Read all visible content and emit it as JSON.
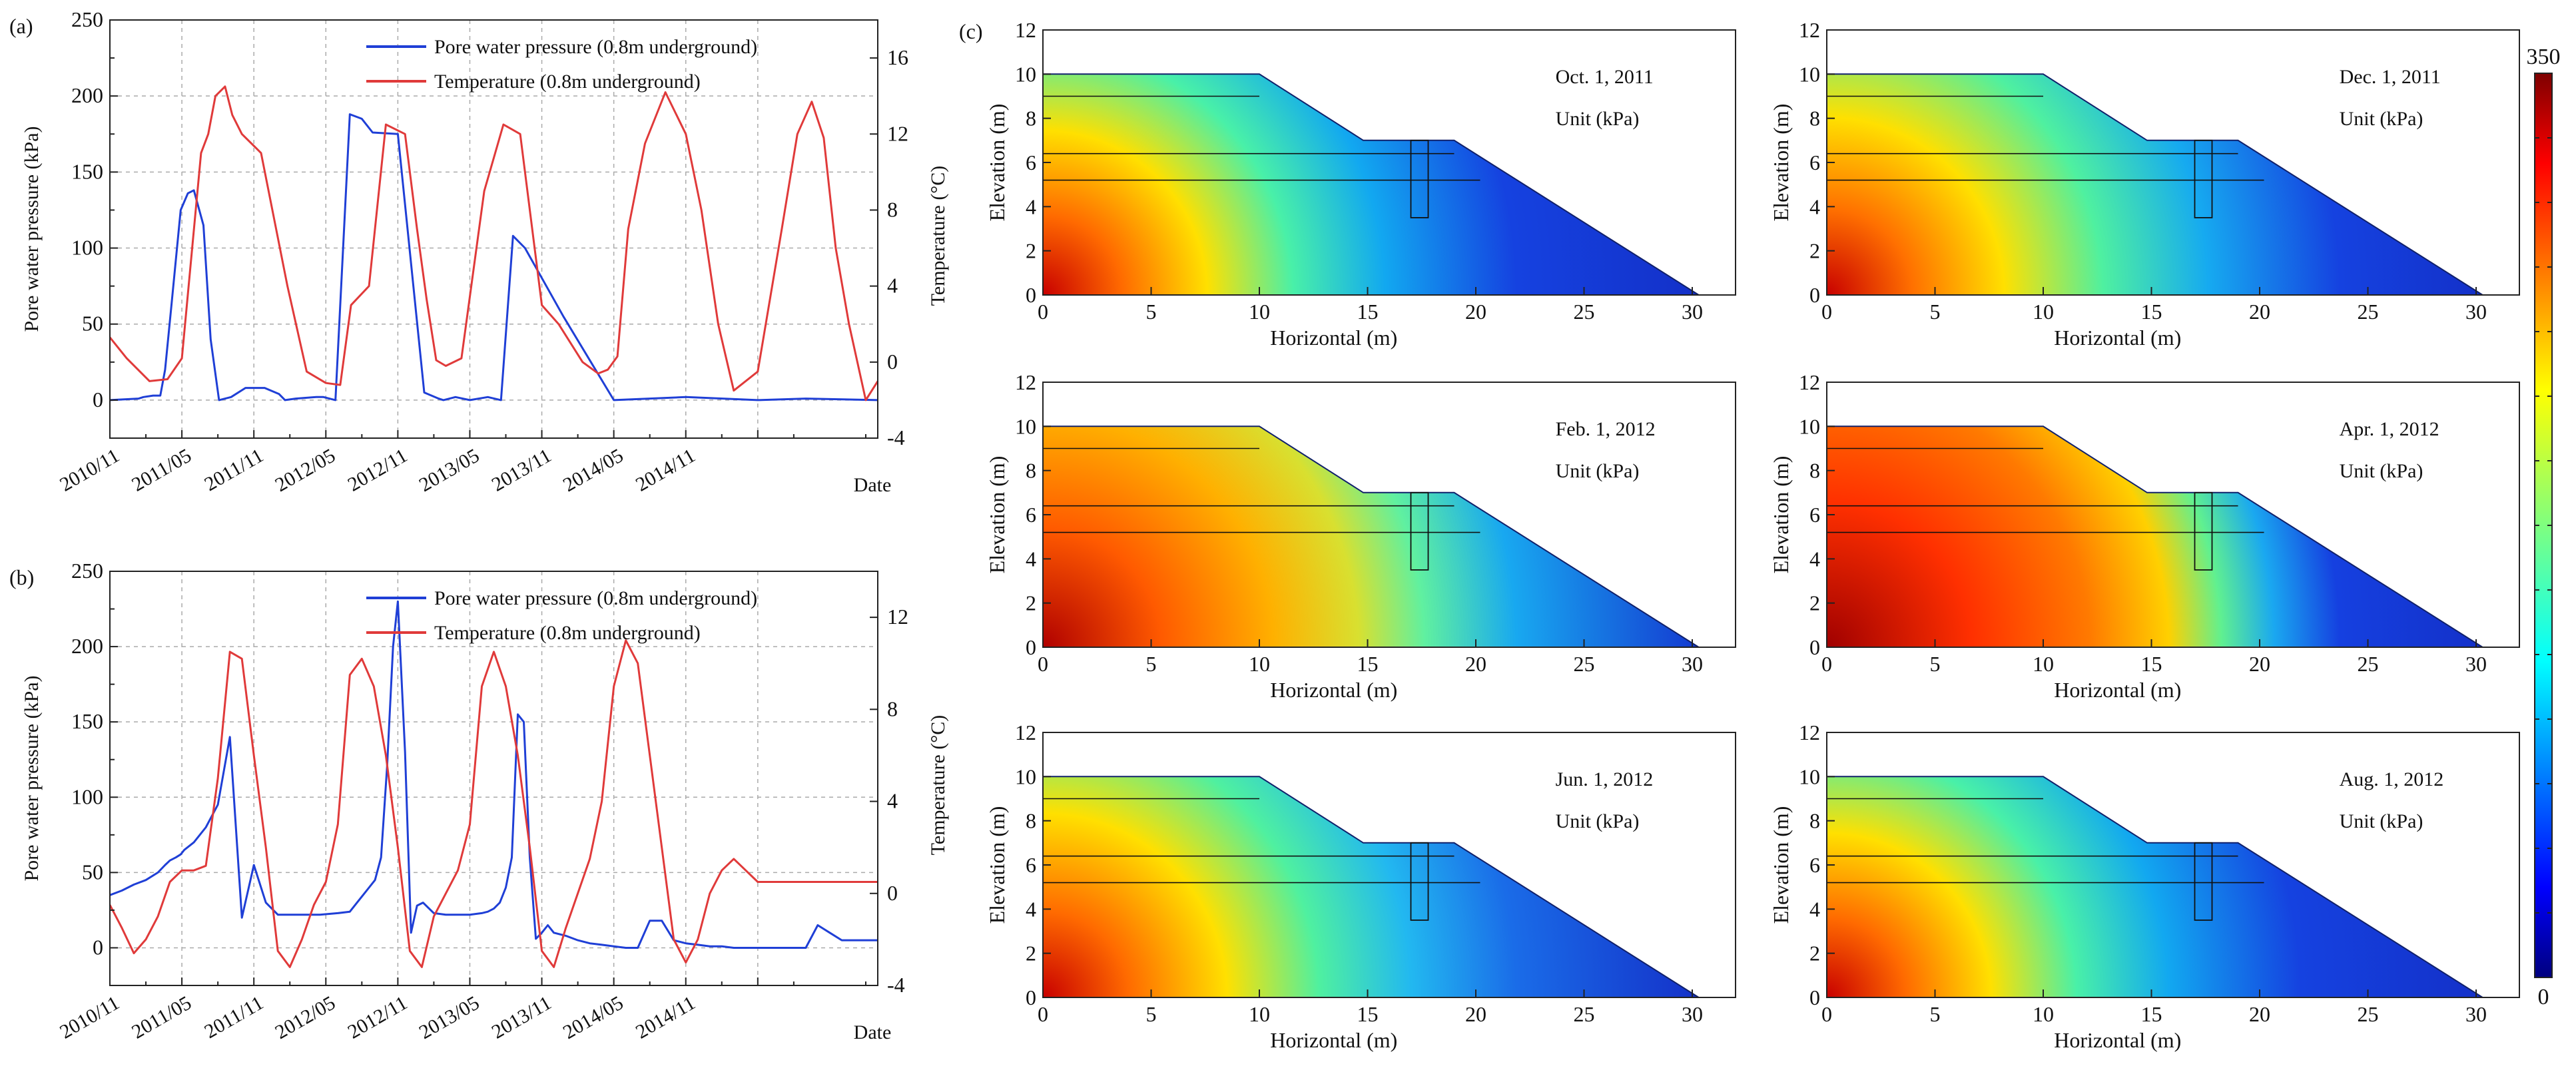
{
  "figure": {
    "panel_labels": [
      "(a)",
      "(b)",
      "(c)"
    ]
  },
  "colors": {
    "pwp": "#1f3fd6",
    "temp": "#e03a3a",
    "grid": "#aaaaaa",
    "axis": "#222222"
  },
  "chart_data": [
    {
      "type": "line",
      "panel": "(a)",
      "xlabel": "Date",
      "ylabel": "Pore water pressure (kPa)",
      "y2label": "Temperature (°C)",
      "x_range": [
        0,
        64
      ],
      "x_ticks": [
        0,
        6,
        12,
        18,
        24,
        30,
        36,
        42,
        48,
        54
      ],
      "x_tick_labels": [
        "2010/11",
        "2011/05",
        "2011/11",
        "2012/05",
        "2012/11",
        "2013/05",
        "2013/11",
        "2014/05",
        "2014/11",
        ""
      ],
      "ylim": [
        -25,
        250
      ],
      "y_ticks": [
        0,
        50,
        100,
        150,
        200,
        250
      ],
      "y2lim": [
        -4,
        18
      ],
      "y2_ticks": [
        -4,
        0,
        4,
        8,
        12,
        16
      ],
      "legend": [
        "Pore water pressure (0.8m underground)",
        "Temperature (0.8m underground)"
      ],
      "legend_position": "top-right",
      "series": [
        {
          "name": "Pore water pressure (0.8m underground)",
          "axis": "left",
          "x": [
            0,
            2.4,
            2.8,
            3.6,
            4.2,
            4.6,
            5.1,
            5.9,
            6.5,
            7.0,
            7.8,
            8.4,
            9.1,
            10.1,
            11.3,
            12.9,
            14.1,
            14.6,
            15.5,
            17.2,
            17.8,
            18.8,
            20.0,
            21.0,
            21.9,
            24.0,
            26.2,
            27.4,
            27.8,
            28.8,
            30.0,
            31.5,
            32.6,
            33.6,
            34.6,
            37.8,
            42.0,
            48.0,
            54.0,
            58.0,
            64.0
          ],
          "y": [
            0,
            1,
            2,
            3,
            3,
            20,
            60,
            125,
            136,
            138,
            115,
            40,
            0,
            2,
            8,
            8,
            4,
            0,
            1,
            2,
            2,
            0,
            188,
            185,
            176,
            175,
            5,
            1,
            0,
            2,
            0,
            2,
            0,
            108,
            100,
            55,
            0,
            2,
            0,
            1,
            0
          ],
          "_note": "approximate trace read from figure"
        },
        {
          "name": "Temperature (0.8m underground)",
          "axis": "right",
          "x": [
            0,
            1.4,
            3.3,
            4.8,
            6.0,
            7.6,
            8.2,
            8.8,
            9.6,
            10.2,
            11.0,
            12.6,
            14.8,
            16.4,
            18.0,
            19.2,
            20.1,
            21.6,
            23.0,
            24.6,
            25.6,
            26.4,
            27.2,
            28.0,
            29.3,
            31.2,
            32.8,
            34.2,
            36.0,
            37.4,
            39.4,
            40.7,
            41.5,
            42.3,
            43.2,
            44.6,
            46.3,
            48.0,
            49.3,
            50.7,
            52.0,
            54.0,
            56.0,
            57.3,
            58.5,
            59.5,
            60.5,
            61.6,
            63.0,
            64.0
          ],
          "y": [
            1.3,
            0.2,
            -1.0,
            -0.9,
            0.2,
            11.0,
            12.0,
            14.0,
            14.5,
            13.0,
            12.0,
            11.0,
            4.0,
            -0.5,
            -1.1,
            -1.2,
            3.0,
            4.0,
            12.5,
            12.0,
            7.0,
            3.3,
            0.1,
            -0.2,
            0.2,
            9.0,
            12.5,
            12.0,
            3.0,
            2.0,
            0.0,
            -0.6,
            -0.4,
            0.3,
            7.0,
            11.5,
            14.2,
            12.0,
            8.0,
            2.0,
            -1.5,
            -0.5,
            7.0,
            12.0,
            13.7,
            11.8,
            6.0,
            2.0,
            -2.0,
            -1.0
          ],
          "_note": "approximate trace read from figure"
        }
      ]
    },
    {
      "type": "line",
      "panel": "(b)",
      "xlabel": "Date",
      "ylabel": "Pore water pressure (kPa)",
      "y2label": "Temperature (°C)",
      "x_range": [
        0,
        64
      ],
      "x_ticks": [
        0,
        6,
        12,
        18,
        24,
        30,
        36,
        42,
        48,
        54
      ],
      "x_tick_labels": [
        "2010/11",
        "2011/05",
        "2011/11",
        "2012/05",
        "2012/11",
        "2013/05",
        "2013/11",
        "2014/05",
        "2014/11",
        ""
      ],
      "ylim": [
        -25,
        250
      ],
      "y_ticks": [
        0,
        50,
        100,
        150,
        200,
        250
      ],
      "y2lim": [
        -4,
        14
      ],
      "y2_ticks": [
        -4,
        0,
        4,
        8,
        12
      ],
      "legend": [
        "Pore water pressure (0.8m underground)",
        "Temperature (0.8m underground)"
      ],
      "legend_position": "top-right",
      "series": [
        {
          "name": "Pore water pressure (0.8m underground)",
          "axis": "left",
          "x": [
            0,
            1.0,
            2.0,
            3.0,
            4.0,
            4.6,
            5.0,
            5.5,
            5.9,
            6.2,
            7.0,
            8.0,
            9.0,
            10.0,
            11.0,
            12.0,
            13.0,
            14.0,
            15.0,
            16.0,
            17.5,
            19.0,
            20.0,
            20.6,
            21.1,
            21.6,
            22.1,
            22.6,
            23.1,
            23.6,
            24.0,
            24.6,
            25.1,
            25.6,
            26.1,
            27.0,
            28.0,
            29.0,
            30.0,
            31.0,
            31.5,
            32.0,
            32.5,
            33.0,
            33.5,
            34.0,
            34.5,
            35.0,
            35.5,
            36.0,
            36.5,
            37.0,
            38.0,
            39.0,
            40.0,
            41.0,
            42.0,
            43.0,
            44.0,
            45.0,
            46.0,
            47.0,
            48.0,
            49.0,
            50.0,
            51.0,
            52.0,
            53.0,
            54.0,
            55.0,
            56.0,
            57.0,
            58.0,
            59.0,
            60.0,
            61.0,
            62.0,
            63.0,
            64.0
          ],
          "y": [
            35,
            38,
            42,
            45,
            50,
            55,
            58,
            60,
            62,
            65,
            70,
            80,
            95,
            140,
            20,
            55,
            30,
            22,
            22,
            22,
            22,
            23,
            24,
            30,
            35,
            40,
            45,
            60,
            120,
            200,
            230,
            130,
            10,
            28,
            30,
            23,
            22,
            22,
            22,
            23,
            24,
            26,
            30,
            40,
            60,
            155,
            150,
            60,
            6,
            10,
            15,
            10,
            8,
            5,
            3,
            2,
            1,
            0,
            0,
            18,
            18,
            5,
            3,
            2,
            1,
            1,
            0,
            0,
            0,
            0,
            0,
            0,
            0,
            15,
            10,
            5,
            5,
            5,
            5
          ],
          "_note": "approximate trace read from figure"
        },
        {
          "name": "Temperature (0.8m underground)",
          "axis": "right",
          "x": [
            0,
            1.0,
            2.0,
            3.0,
            4.0,
            5.0,
            6.0,
            7.0,
            8.0,
            9.0,
            10.0,
            11.0,
            12.0,
            13.0,
            14.0,
            15.0,
            16.0,
            17.0,
            18.0,
            19.0,
            20.0,
            21.0,
            22.0,
            23.0,
            24.0,
            25.0,
            26.0,
            27.0,
            28.0,
            29.0,
            30.0,
            31.0,
            32.0,
            33.0,
            34.0,
            35.0,
            36.0,
            37.0,
            38.0,
            39.0,
            40.0,
            41.0,
            42.0,
            43.0,
            44.0,
            45.0,
            46.0,
            47.0,
            48.0,
            49.0,
            50.0,
            51.0,
            52.0,
            53.0,
            54.0,
            55.0,
            56.0,
            57.0,
            58.0,
            59.0,
            60.0,
            61.0,
            62.0,
            63.0,
            64.0
          ],
          "y": [
            -0.5,
            -1.5,
            -2.6,
            -2.0,
            -1.0,
            0.5,
            1.0,
            1.0,
            1.2,
            5.0,
            10.5,
            10.2,
            6.0,
            2.0,
            -2.5,
            -3.2,
            -2.0,
            -0.5,
            0.5,
            3.0,
            9.5,
            10.2,
            9.0,
            6.0,
            2.0,
            -2.5,
            -3.2,
            -1.0,
            0.0,
            1.0,
            3.0,
            9.0,
            10.5,
            9.0,
            6.0,
            2.0,
            -2.5,
            -3.2,
            -1.5,
            0.0,
            1.5,
            4.0,
            9.0,
            11.0,
            10.0,
            6.0,
            2.0,
            -2.0,
            -3.0,
            -2.0,
            0.0,
            1.0,
            1.5,
            1.0,
            0.5,
            0.5,
            0.5,
            0.5,
            0.5,
            0.5,
            0.5,
            0.5,
            0.5,
            0.5,
            0.5
          ],
          "_note": "approximate trace read from figure"
        }
      ]
    },
    {
      "type": "heatmap",
      "panel": "(c)",
      "xlabel": "Horizontal (m)",
      "ylabel": "Elevation (m)",
      "xlim": [
        0,
        32
      ],
      "ylim": [
        0,
        12
      ],
      "x_ticks": [
        0,
        5,
        10,
        15,
        20,
        25,
        30
      ],
      "y_ticks": [
        0,
        2,
        4,
        6,
        8,
        10,
        12
      ],
      "colorbar": {
        "min": 0,
        "max": 350,
        "min_label": "0",
        "max_label": "350",
        "colormap": "jet"
      },
      "subplots": [
        {
          "date": "Oct. 1, 2011",
          "unit": "Unit (kPa)"
        },
        {
          "date": "Dec. 1, 2011",
          "unit": "Unit (kPa)"
        },
        {
          "date": "Feb. 1, 2012",
          "unit": "Unit (kPa)"
        },
        {
          "date": "Apr. 1, 2012",
          "unit": "Unit (kPa)"
        },
        {
          "date": "Jun. 1, 2012",
          "unit": "Unit (kPa)"
        },
        {
          "date": "Aug. 1, 2012",
          "unit": "Unit (kPa)"
        }
      ]
    }
  ]
}
